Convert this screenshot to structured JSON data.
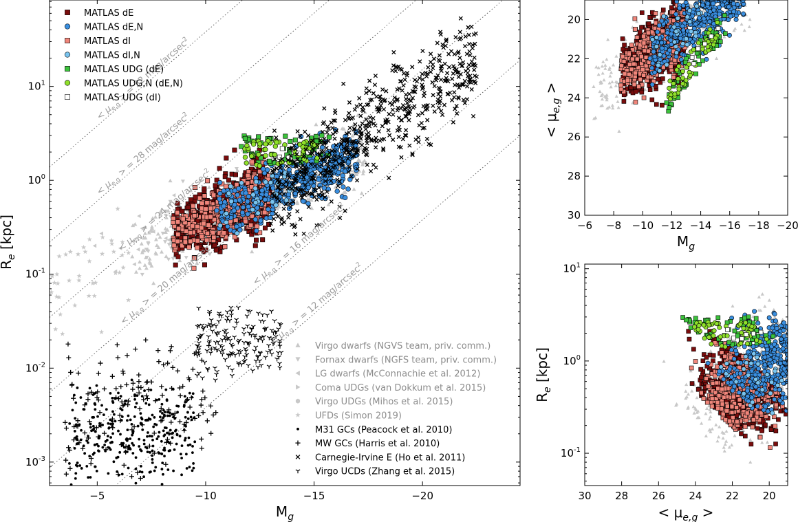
{
  "chart_data": [
    {
      "type": "scatter",
      "id": "main",
      "xlabel": "M",
      "xlabel_sub": "g",
      "ylabel": "R",
      "ylabel_sub": "e",
      "ylabel_unit": " [kpc]",
      "xlim": [
        -2.8,
        -24.5
      ],
      "ylim_log10": [
        -3.25,
        1.92
      ],
      "yscale": "log",
      "xticks": [
        -5,
        -10,
        -15,
        -20
      ],
      "xtick_labels": [
        "−5",
        "−10",
        "−15",
        "−20"
      ],
      "yticks_log10": [
        -3,
        -2,
        -1,
        0,
        1
      ],
      "ytick_labels": [
        {
          "b": "10",
          "e": "-3"
        },
        {
          "b": "10",
          "e": "-2"
        },
        {
          "b": "10",
          "e": "-1"
        },
        {
          "b": "10",
          "e": "0"
        },
        {
          "b": "10",
          "e": "1"
        }
      ],
      "iso_lines": [
        {
          "mu": 32,
          "label": "<μ_{e,g}> = 32 mag/arcsec²",
          "text_pre": "< ",
          "mu_sym": "μ",
          "mu_sub": "e,g",
          "text_post": " > = 32 mag/arcsec",
          "sup": "2",
          "label_x": -5.2
        },
        {
          "mu": 28,
          "label": "<μ_{e,g}> = 28 mag/arcsec²",
          "text_pre": "< ",
          "mu_sym": "μ",
          "mu_sub": "e,g",
          "text_post": " > = 28 mag/arcsec",
          "sup": "2",
          "label_x": -5.2
        },
        {
          "mu": 24,
          "label": "<μ_{e,g}> = 24 mag/arcsec²",
          "text_pre": "< ",
          "mu_sym": "μ",
          "mu_sub": "e,g",
          "text_post": " > = 24 mag/arcsec",
          "sup": "2",
          "label_x": -6.2
        },
        {
          "mu": 20,
          "label": "<μ_{e,g}> = 20 mag/arcsec²",
          "text_pre": "< ",
          "mu_sym": "μ",
          "mu_sub": "e,g",
          "text_post": " > = 20 mag/arcsec",
          "sup": "2",
          "label_x": -6.3
        },
        {
          "mu": 16,
          "label": "<μ_{e,g}> = 16 mag/arcsec²",
          "text_pre": "< ",
          "mu_sym": "μ",
          "mu_sub": "e,g",
          "text_post": " > = 16 mag/arcsec",
          "sup": "2",
          "label_x": -12.4
        },
        {
          "mu": 12,
          "label": "<μ_{e,g}> = 12 mag/arcsec²",
          "text_pre": "< ",
          "mu_sym": "μ",
          "mu_sub": "e,g",
          "text_post": " > = 12 mag/arcsec",
          "sup": "2",
          "label_x": -13.2
        }
      ],
      "legend_location": "upper-left",
      "legend": [
        {
          "key": "dE",
          "label": "MATLAS dE",
          "marker": "square",
          "color": "#7a0d0d"
        },
        {
          "key": "dEN",
          "label": "MATLAS dE,N",
          "marker": "circle",
          "color": "#3a8fe0"
        },
        {
          "key": "dI",
          "label": "MATLAS dI",
          "marker": "square",
          "color": "#f0857a"
        },
        {
          "key": "dIN",
          "label": "MATLAS dI,N",
          "marker": "circle",
          "color": "#79c4ef"
        },
        {
          "key": "UDGdE",
          "label": "MATLAS UDG (dE)",
          "marker": "square",
          "color": "#3cc23c"
        },
        {
          "key": "UDGN",
          "label": "MATLAS UDG,N (dE,N)",
          "marker": "circle",
          "color": "#8fe02a"
        },
        {
          "key": "UDGdI",
          "label": "MATLAS UDG (dI)",
          "marker": "square",
          "color": "#ffffff"
        }
      ],
      "legend2_location": "lower-right",
      "legend2": [
        {
          "key": "virgo",
          "label": "Virgo dwarfs (NGVS team, priv. comm.)",
          "marker": "triangle-up",
          "color": "#c8c8c8"
        },
        {
          "key": "fornax",
          "label": "Fornax dwarfs (NGFS team, priv. comm.)",
          "marker": "triangle-down",
          "color": "#c8c8c8"
        },
        {
          "key": "lg",
          "label": "LG dwarfs (McConnachie et al. 2012)",
          "marker": "triangle-left",
          "color": "#c8c8c8"
        },
        {
          "key": "coma",
          "label": "Coma UDGs (van Dokkum et al. 2015)",
          "marker": "triangle-right",
          "color": "#c8c8c8"
        },
        {
          "key": "virgoudg",
          "label": "Virgo UDGs (Mihos et al. 2015)",
          "marker": "hexagon",
          "color": "#c8c8c8"
        },
        {
          "key": "ufd",
          "label": "UFDs (Simon 2019)",
          "marker": "star",
          "color": "#c8c8c8"
        },
        {
          "key": "m31",
          "label": "M31 GCs (Peacock et al. 2010)",
          "marker": "dot",
          "color": "#000000"
        },
        {
          "key": "mw",
          "label": "MW GCs (Harris et al. 2010)",
          "marker": "plus",
          "color": "#000000"
        },
        {
          "key": "ce",
          "label": "Carnegie-Irvine E (Ho et al. 2011)",
          "marker": "x",
          "color": "#000000"
        },
        {
          "key": "ucd",
          "label": "Virgo UCDs (Zhang et al. 2015)",
          "marker": "tri",
          "color": "#000000"
        }
      ],
      "populations": [
        {
          "key": "virgo",
          "kind": "main",
          "n": 450,
          "mx": [
            -6.5,
            -17.5
          ],
          "ry": 0.3,
          "scatter": 0.17
        },
        {
          "key": "fornax",
          "kind": "main",
          "n": 90,
          "mx": [
            -7,
            -13
          ],
          "ry": 0.3,
          "scatter": 0.18
        },
        {
          "key": "lg",
          "kind": "main",
          "n": 40,
          "mx": [
            -4,
            -14
          ],
          "ry": 0.35,
          "scatter": 0.2
        },
        {
          "key": "ufd",
          "kind": "band",
          "n": 40,
          "mx": [
            -2.8,
            -6.5
          ],
          "logr": [
            -1.4,
            -0.6
          ]
        },
        {
          "key": "dE",
          "kind": "main",
          "n": 620,
          "mx": [
            -8.5,
            -13
          ],
          "ry": 0.3,
          "scatter": 0.17
        },
        {
          "key": "dI",
          "kind": "main",
          "n": 380,
          "mx": [
            -8.5,
            -13
          ],
          "ry": 0.3,
          "scatter": 0.15
        },
        {
          "key": "dEN",
          "kind": "main",
          "n": 420,
          "mx": [
            -10.5,
            -17
          ],
          "ry": 0.3,
          "scatter": 0.14
        },
        {
          "key": "dIN",
          "kind": "main",
          "n": 30,
          "mx": [
            -10.5,
            -14
          ],
          "ry": 0.3,
          "scatter": 0.12
        },
        {
          "key": "UDGdE",
          "kind": "band",
          "n": 60,
          "mx": [
            -11.5,
            -15.7
          ],
          "logr": [
            0.18,
            0.48
          ]
        },
        {
          "key": "UDGN",
          "kind": "band",
          "n": 55,
          "mx": [
            -11.8,
            -15.2
          ],
          "logr": [
            0.15,
            0.42
          ]
        },
        {
          "key": "UDGdI",
          "kind": "band",
          "n": 6,
          "mx": [
            -13,
            -15.5
          ],
          "logr": [
            0.2,
            0.42
          ]
        },
        {
          "key": "ce",
          "kind": "band",
          "n": 620,
          "mx": [
            -13,
            -22.5
          ],
          "logr": [
            -0.6,
            1.6
          ]
        },
        {
          "key": "mw",
          "kind": "blob",
          "n": 150,
          "mx": [
            -3.5,
            -10.5
          ],
          "logr": [
            -3.1,
            -1.75
          ]
        },
        {
          "key": "m31",
          "kind": "blob",
          "n": 320,
          "mx": [
            -3.7,
            -9.5
          ],
          "logr": [
            -3.15,
            -2.2
          ]
        },
        {
          "key": "ucd",
          "kind": "blob",
          "n": 180,
          "mx": [
            -9.6,
            -13.5
          ],
          "logr": [
            -2.05,
            -1.4
          ]
        }
      ]
    },
    {
      "type": "scatter",
      "id": "top-right",
      "xlabel": "M",
      "xlabel_sub": "g",
      "ylabel": "< μ",
      "ylabel_sub": "e,g",
      "ylabel_post": " >",
      "xlim": [
        -6,
        -20
      ],
      "ylim": [
        30,
        19
      ],
      "xticks": [
        -6,
        -8,
        -10,
        -12,
        -14,
        -16,
        -18,
        -20
      ],
      "xtick_labels": [
        "−6",
        "−8",
        "−10",
        "−12",
        "−14",
        "−16",
        "−18",
        "−20"
      ],
      "yticks": [
        20,
        22,
        24,
        26,
        28,
        30
      ],
      "ytick_labels": [
        "20",
        "22",
        "24",
        "26",
        "28",
        "30"
      ]
    },
    {
      "type": "scatter",
      "id": "bottom-right",
      "xlabel": "< μ",
      "xlabel_sub": "e,g",
      "xlabel_post": " >",
      "ylabel": "R",
      "ylabel_sub": "e",
      "ylabel_unit": " [kpc]",
      "xlim": [
        30,
        19
      ],
      "ylim_log10": [
        -1.35,
        1.05
      ],
      "yscale": "log",
      "xticks": [
        30,
        28,
        26,
        24,
        22,
        20
      ],
      "xtick_labels": [
        "30",
        "28",
        "26",
        "24",
        "22",
        "20"
      ],
      "yticks_log10": [
        -1,
        0,
        1
      ],
      "ytick_labels": [
        {
          "b": "10",
          "e": "-1"
        },
        {
          "b": "10",
          "e": "0"
        },
        {
          "b": "10",
          "e": "1"
        }
      ]
    }
  ]
}
